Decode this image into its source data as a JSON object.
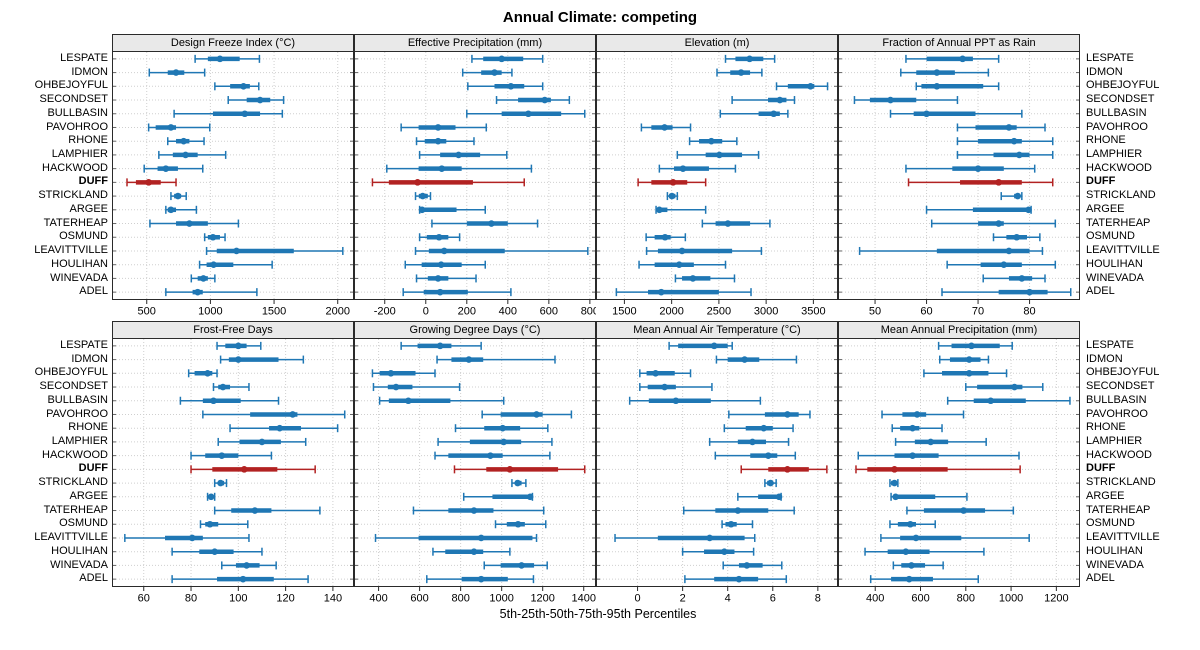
{
  "title": "Annual Climate: competing",
  "axis_title": "5th-25th-50th-75th-95th Percentiles",
  "highlight_site": "DUFF",
  "colors": {
    "series": "#1f77b4",
    "highlight": "#b22222",
    "grid": "#cfcfcf",
    "frame": "#2a2a2a",
    "edge_tick": "#666666",
    "strip_bg": "#e9e9e9"
  },
  "chart_data": {
    "type": "dotplot-intervals",
    "percentiles": [
      5,
      25,
      50,
      75,
      95
    ],
    "legend": "intervals show 5th-25th-50th-75th-95th percentiles; DUFF site highlighted in red",
    "sites": [
      "LESPATE",
      "IDMON",
      "OHBEJOYFUL",
      "SECONDSET",
      "BULLBASIN",
      "PAVOHROO",
      "RHONE",
      "LAMPHIER",
      "HACKWOOD",
      "DUFF",
      "STRICKLAND",
      "ARGEE",
      "TATERHEAP",
      "OSMUND",
      "LEAVITTVILLE",
      "HOULIHAN",
      "WINEVADA",
      "ADEL"
    ],
    "panels": [
      {
        "title": "Design Freeze Index (°C)",
        "block": "top",
        "domain": [
          235,
          2120
        ],
        "ticks": [
          500,
          1000,
          1500,
          2000
        ],
        "values": [
          [
            880,
            980,
            1075,
            1230,
            1385
          ],
          [
            520,
            665,
            730,
            795,
            955
          ],
          [
            1035,
            1155,
            1260,
            1310,
            1380
          ],
          [
            1140,
            1285,
            1390,
            1470,
            1575
          ],
          [
            715,
            1020,
            1270,
            1390,
            1565
          ],
          [
            515,
            570,
            690,
            730,
            995
          ],
          [
            665,
            730,
            790,
            835,
            950
          ],
          [
            595,
            705,
            805,
            900,
            1120
          ],
          [
            480,
            585,
            650,
            745,
            940
          ],
          [
            345,
            415,
            515,
            610,
            730
          ],
          [
            690,
            715,
            745,
            770,
            810
          ],
          [
            650,
            665,
            690,
            730,
            890
          ],
          [
            525,
            730,
            835,
            980,
            1220
          ],
          [
            955,
            980,
            1020,
            1075,
            1115
          ],
          [
            970,
            1050,
            1205,
            1655,
            2040
          ],
          [
            915,
            970,
            1025,
            1180,
            1485
          ],
          [
            850,
            900,
            945,
            980,
            1035
          ],
          [
            650,
            860,
            900,
            940,
            1365
          ]
        ]
      },
      {
        "title": "Effective Precipitation (mm)",
        "block": "top",
        "domain": [
          -345,
          825
        ],
        "ticks": [
          -200,
          0,
          200,
          400,
          600,
          800
        ],
        "values": [
          [
            225,
            280,
            370,
            475,
            570
          ],
          [
            180,
            270,
            335,
            370,
            420
          ],
          [
            205,
            335,
            415,
            480,
            570
          ],
          [
            345,
            450,
            580,
            610,
            700
          ],
          [
            200,
            370,
            500,
            660,
            775
          ],
          [
            -120,
            -35,
            60,
            145,
            295
          ],
          [
            -45,
            -5,
            60,
            100,
            235
          ],
          [
            -30,
            70,
            160,
            265,
            395
          ],
          [
            -190,
            -35,
            78,
            175,
            515
          ],
          [
            -260,
            -180,
            -40,
            230,
            480
          ],
          [
            -50,
            -34,
            -15,
            10,
            23
          ],
          [
            -30,
            -25,
            -18,
            150,
            290
          ],
          [
            30,
            200,
            320,
            400,
            545
          ],
          [
            -30,
            5,
            65,
            110,
            165
          ],
          [
            -50,
            15,
            90,
            385,
            790
          ],
          [
            -100,
            -20,
            75,
            175,
            290
          ],
          [
            -45,
            10,
            60,
            110,
            245
          ],
          [
            -110,
            -10,
            70,
            205,
            415
          ]
        ]
      },
      {
        "title": "Elevation (m)",
        "block": "top",
        "domain": [
          1210,
          3750
        ],
        "ticks": [
          1500,
          2000,
          2500,
          3000,
          3500
        ],
        "values": [
          [
            2570,
            2675,
            2825,
            2970,
            3090
          ],
          [
            2480,
            2620,
            2735,
            2830,
            2955
          ],
          [
            3110,
            3230,
            3470,
            3510,
            3650
          ],
          [
            2640,
            3020,
            3145,
            3215,
            3300
          ],
          [
            2515,
            2920,
            3080,
            3145,
            3230
          ],
          [
            1680,
            1785,
            1925,
            2010,
            2200
          ],
          [
            2190,
            2290,
            2420,
            2535,
            2690
          ],
          [
            2060,
            2360,
            2505,
            2745,
            2920
          ],
          [
            1870,
            2025,
            2120,
            2395,
            2675
          ],
          [
            1645,
            1785,
            2015,
            2165,
            2360
          ],
          [
            1955,
            1975,
            2003,
            2040,
            2060
          ],
          [
            1835,
            1855,
            1870,
            1955,
            2360
          ],
          [
            2325,
            2465,
            2595,
            2830,
            3040
          ],
          [
            1730,
            1820,
            1930,
            1990,
            2145
          ],
          [
            1735,
            1855,
            2110,
            2640,
            2950
          ],
          [
            1655,
            1820,
            2080,
            2235,
            2570
          ],
          [
            2040,
            2110,
            2225,
            2410,
            2665
          ],
          [
            1415,
            1750,
            1890,
            2500,
            2840
          ]
        ]
      },
      {
        "title": "Fraction of Annual PPT as Rain",
        "block": "top",
        "domain": [
          43,
          89.6
        ],
        "ticks": [
          50,
          60,
          70,
          80
        ],
        "values": [
          [
            56,
            60,
            67,
            69,
            74
          ],
          [
            55,
            58,
            62,
            65.5,
            72
          ],
          [
            58,
            59,
            62,
            71,
            74
          ],
          [
            46,
            49,
            53,
            58,
            66
          ],
          [
            53,
            57.5,
            60,
            69.5,
            78.5
          ],
          [
            66,
            69.5,
            76,
            77.5,
            83
          ],
          [
            66,
            70,
            77,
            78.5,
            84.5
          ],
          [
            66,
            73,
            78,
            80,
            84.5
          ],
          [
            56,
            65,
            70,
            75,
            81
          ],
          [
            56.5,
            66.5,
            74,
            78.5,
            84.5
          ],
          [
            74.5,
            77,
            77.7,
            78.2,
            78.5
          ],
          [
            60,
            69,
            79.8,
            80,
            80.3
          ],
          [
            61,
            70,
            74,
            75,
            85
          ],
          [
            73,
            75.5,
            77.5,
            79.5,
            82
          ],
          [
            47,
            62,
            76,
            80,
            82.5
          ],
          [
            64,
            70.5,
            75,
            78.5,
            85
          ],
          [
            71,
            76,
            78.5,
            80.5,
            83
          ],
          [
            63,
            74,
            80,
            83.5,
            88
          ]
        ]
      },
      {
        "title": "Frost-Free Days",
        "block": "bottom",
        "domain": [
          47,
          148.5
        ],
        "ticks": [
          60,
          80,
          100,
          120,
          140
        ],
        "values": [
          [
            91,
            94.5,
            100,
            103.5,
            109.5
          ],
          [
            92.5,
            96,
            100,
            117,
            127.5
          ],
          [
            79,
            81.5,
            87,
            89,
            91
          ],
          [
            89.5,
            91.5,
            93.5,
            96.5,
            104.5
          ],
          [
            75.5,
            85,
            89.5,
            101,
            117
          ],
          [
            85,
            105,
            123,
            125,
            145
          ],
          [
            96.5,
            113,
            117.5,
            126.5,
            142
          ],
          [
            91.5,
            100.5,
            110,
            118,
            128.5
          ],
          [
            80,
            86,
            93,
            100,
            114
          ],
          [
            80,
            89,
            102.5,
            116.5,
            132.5
          ],
          [
            90,
            91.5,
            92.5,
            94,
            95
          ],
          [
            87,
            88,
            88.5,
            89,
            90
          ],
          [
            90,
            97,
            107,
            114,
            134.5
          ],
          [
            84,
            86,
            88,
            91.5,
            104
          ],
          [
            52,
            69,
            80.5,
            85,
            104.5
          ],
          [
            72,
            83.5,
            90,
            98,
            110
          ],
          [
            93,
            99,
            103.5,
            109,
            116
          ],
          [
            72,
            91,
            102,
            115,
            129.5
          ]
        ]
      },
      {
        "title": "Growing Degree Days (°C)",
        "block": "bottom",
        "domain": [
          285,
          1455
        ],
        "ticks": [
          400,
          600,
          800,
          1000,
          1200,
          1400
        ],
        "values": [
          [
            510,
            590,
            700,
            755,
            900
          ],
          [
            685,
            755,
            840,
            910,
            1260
          ],
          [
            370,
            405,
            460,
            580,
            675
          ],
          [
            375,
            445,
            485,
            565,
            795
          ],
          [
            405,
            450,
            545,
            750,
            1010
          ],
          [
            905,
            995,
            1170,
            1200,
            1340
          ],
          [
            775,
            915,
            1005,
            1090,
            1225
          ],
          [
            690,
            845,
            1010,
            1095,
            1245
          ],
          [
            675,
            740,
            945,
            1005,
            1235
          ],
          [
            770,
            925,
            1040,
            1275,
            1405
          ],
          [
            1050,
            1065,
            1078,
            1097,
            1118
          ],
          [
            815,
            955,
            1139,
            1145,
            1150
          ],
          [
            570,
            740,
            865,
            960,
            1205
          ],
          [
            970,
            1025,
            1080,
            1113,
            1215
          ],
          [
            385,
            595,
            900,
            1150,
            1170
          ],
          [
            665,
            725,
            865,
            910,
            1040
          ],
          [
            915,
            995,
            1097,
            1158,
            1222
          ],
          [
            635,
            805,
            900,
            1030,
            1155
          ]
        ]
      },
      {
        "title": "Mean Annual Air Temperature (°C)",
        "block": "bottom",
        "domain": [
          -1.8,
          8.85
        ],
        "ticks": [
          0,
          2,
          4,
          6,
          8
        ],
        "values": [
          [
            1.4,
            1.8,
            3.4,
            4.0,
            4.2
          ],
          [
            3.5,
            4.0,
            4.75,
            5.4,
            7.05
          ],
          [
            0.1,
            0.4,
            0.8,
            1.65,
            2.35
          ],
          [
            0.1,
            0.45,
            1.2,
            1.7,
            3.3
          ],
          [
            -0.35,
            0.5,
            1.7,
            3.25,
            5.45
          ],
          [
            4.05,
            5.65,
            6.65,
            7.15,
            7.65
          ],
          [
            3.85,
            4.8,
            5.6,
            6.0,
            6.9
          ],
          [
            3.2,
            4.45,
            5.1,
            5.7,
            6.7
          ],
          [
            3.45,
            5.0,
            5.8,
            6.2,
            7.0
          ],
          [
            4.6,
            5.8,
            6.65,
            7.6,
            8.4
          ],
          [
            5.65,
            5.75,
            5.9,
            6.0,
            6.15
          ],
          [
            4.45,
            5.35,
            6.28,
            6.32,
            6.37
          ],
          [
            2.05,
            3.45,
            4.45,
            5.8,
            6.95
          ],
          [
            3.75,
            3.9,
            4.15,
            4.4,
            5.1
          ],
          [
            -1.0,
            0.9,
            3.2,
            4.75,
            5.2
          ],
          [
            2.0,
            2.95,
            3.85,
            4.3,
            5.15
          ],
          [
            3.8,
            4.5,
            4.85,
            5.55,
            6.4
          ],
          [
            2.1,
            3.4,
            4.5,
            5.35,
            6.6
          ]
        ]
      },
      {
        "title": "Mean Annual Precipitation (mm)",
        "block": "bottom",
        "domain": [
          240,
          1300
        ],
        "ticks": [
          400,
          600,
          800,
          1000,
          1200
        ],
        "values": [
          [
            680,
            737,
            825,
            950,
            1005
          ],
          [
            685,
            730,
            815,
            865,
            900
          ],
          [
            615,
            695,
            815,
            900,
            980
          ],
          [
            800,
            850,
            1015,
            1050,
            1140
          ],
          [
            720,
            835,
            910,
            1065,
            1260
          ],
          [
            430,
            520,
            585,
            625,
            790
          ],
          [
            475,
            510,
            565,
            595,
            695
          ],
          [
            490,
            575,
            645,
            722,
            890
          ],
          [
            325,
            485,
            565,
            680,
            1035
          ],
          [
            315,
            365,
            485,
            720,
            1040
          ],
          [
            465,
            470,
            485,
            493,
            500
          ],
          [
            470,
            480,
            490,
            665,
            805
          ],
          [
            540,
            615,
            790,
            885,
            1010
          ],
          [
            465,
            500,
            555,
            580,
            665
          ],
          [
            425,
            510,
            580,
            780,
            1080
          ],
          [
            355,
            455,
            535,
            640,
            880
          ],
          [
            480,
            515,
            560,
            620,
            700
          ],
          [
            380,
            470,
            550,
            655,
            855
          ]
        ]
      }
    ]
  }
}
